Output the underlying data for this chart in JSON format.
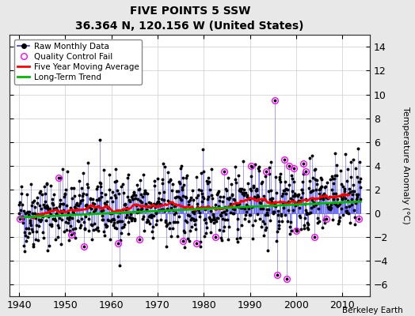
{
  "title": "FIVE POINTS 5 SSW",
  "subtitle": "36.364 N, 120.156 W (United States)",
  "ylabel": "Temperature Anomaly (°C)",
  "attribution": "Berkeley Earth",
  "xlim": [
    1938,
    2016
  ],
  "ylim": [
    -7,
    15
  ],
  "yticks": [
    -6,
    -4,
    -2,
    0,
    2,
    4,
    6,
    8,
    10,
    12,
    14
  ],
  "xticks": [
    1940,
    1950,
    1960,
    1970,
    1980,
    1990,
    2000,
    2010
  ],
  "start_year": 1940,
  "end_year": 2014,
  "plot_bg_color": "#ffffff",
  "fig_bg_color": "#e8e8e8",
  "raw_line_color": "#3333ff",
  "raw_dot_color": "#000000",
  "qc_color": "#ff00ff",
  "moving_avg_color": "#ff0000",
  "trend_color": "#00bb00",
  "grid_color": "#cccccc",
  "trend_slope": 0.018,
  "seed": 42,
  "noise_std": 1.5,
  "qc_points": [
    {
      "year": 1940.25,
      "val": -0.5
    },
    {
      "year": 1948.5,
      "val": 3.0
    },
    {
      "year": 1951.3,
      "val": -1.8
    },
    {
      "year": 1954.0,
      "val": -2.8
    },
    {
      "year": 1961.5,
      "val": -2.5
    },
    {
      "year": 1966.0,
      "val": -2.2
    },
    {
      "year": 1975.5,
      "val": -2.3
    },
    {
      "year": 1978.5,
      "val": -2.5
    },
    {
      "year": 1982.5,
      "val": -2.0
    },
    {
      "year": 1984.5,
      "val": 3.5
    },
    {
      "year": 1990.3,
      "val": 4.0
    },
    {
      "year": 1993.5,
      "val": 3.5
    },
    {
      "year": 1995.3,
      "val": 9.5
    },
    {
      "year": 1995.8,
      "val": -5.2
    },
    {
      "year": 1997.5,
      "val": 4.5
    },
    {
      "year": 1998.0,
      "val": -5.5
    },
    {
      "year": 1998.5,
      "val": 4.0
    },
    {
      "year": 1999.5,
      "val": 3.8
    },
    {
      "year": 2000.0,
      "val": -1.5
    },
    {
      "year": 2001.5,
      "val": 4.2
    },
    {
      "year": 2002.0,
      "val": 3.5
    },
    {
      "year": 2004.0,
      "val": -2.0
    },
    {
      "year": 2006.5,
      "val": -0.5
    },
    {
      "year": 2013.5,
      "val": -0.5
    }
  ]
}
